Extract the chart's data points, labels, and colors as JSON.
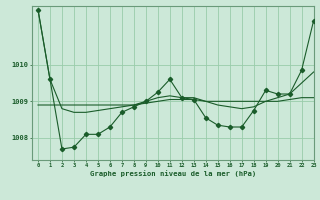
{
  "title": "Graphe pression niveau de la mer (hPa)",
  "background_color": "#cce8d8",
  "grid_color": "#99ccaa",
  "line_color": "#1a5c2a",
  "xlim": [
    -0.5,
    23
  ],
  "ylim": [
    1007.4,
    1011.6
  ],
  "yticks": [
    1008,
    1009,
    1010
  ],
  "xticks": [
    0,
    1,
    2,
    3,
    4,
    5,
    6,
    7,
    8,
    9,
    10,
    11,
    12,
    13,
    14,
    15,
    16,
    17,
    18,
    19,
    20,
    21,
    22,
    23
  ],
  "series_flat_x": [
    0,
    1,
    2,
    3,
    4,
    5,
    6,
    7,
    8,
    9,
    10,
    11,
    12,
    13,
    14,
    15,
    16,
    17,
    18,
    19,
    20,
    21,
    22,
    23
  ],
  "series_flat_y": [
    1008.9,
    1008.9,
    1008.9,
    1008.9,
    1008.9,
    1008.9,
    1008.9,
    1008.9,
    1008.9,
    1008.95,
    1009.0,
    1009.05,
    1009.05,
    1009.05,
    1009.0,
    1009.0,
    1009.0,
    1009.0,
    1009.0,
    1009.0,
    1009.0,
    1009.05,
    1009.1,
    1009.1
  ],
  "series_smooth_x": [
    0,
    1,
    2,
    3,
    4,
    5,
    6,
    7,
    8,
    9,
    10,
    11,
    12,
    13,
    14,
    15,
    16,
    17,
    18,
    19,
    20,
    21,
    22,
    23
  ],
  "series_smooth_y": [
    1011.5,
    1009.6,
    1008.8,
    1008.7,
    1008.7,
    1008.75,
    1008.8,
    1008.85,
    1008.9,
    1009.0,
    1009.1,
    1009.15,
    1009.1,
    1009.1,
    1009.0,
    1008.9,
    1008.85,
    1008.8,
    1008.85,
    1009.0,
    1009.1,
    1009.2,
    1009.5,
    1009.8
  ],
  "series_markers_x": [
    0,
    1,
    2,
    3,
    4,
    5,
    6,
    7,
    8,
    9,
    10,
    11,
    12,
    13,
    14,
    15,
    16,
    17,
    18,
    19,
    20,
    21,
    22,
    23
  ],
  "series_markers_y": [
    1011.5,
    1009.6,
    1007.7,
    1007.75,
    1008.1,
    1008.1,
    1008.3,
    1008.7,
    1008.85,
    1009.0,
    1009.25,
    1009.6,
    1009.1,
    1009.05,
    1008.55,
    1008.35,
    1008.3,
    1008.3,
    1008.75,
    1009.3,
    1009.2,
    1009.2,
    1009.85,
    1011.2
  ]
}
